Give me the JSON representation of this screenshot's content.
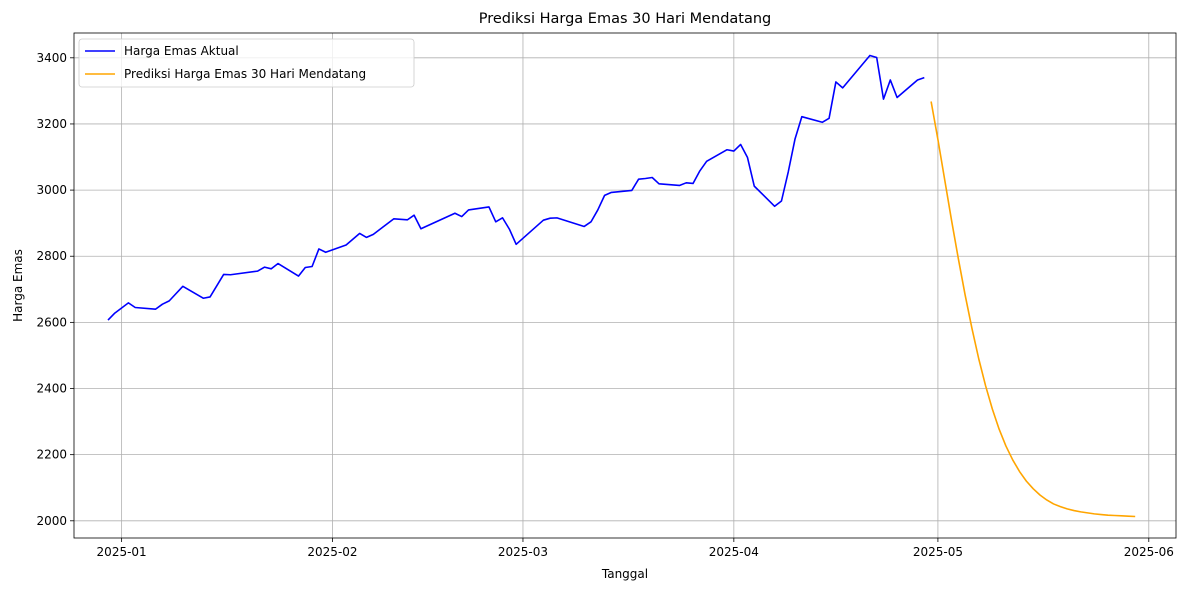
{
  "chart_data": {
    "type": "line",
    "title": "Prediksi Harga Emas 30 Hari Mendatang",
    "xlabel": "Tanggal",
    "ylabel": "Harga Emas",
    "x_axis_type": "date",
    "xlim": [
      "2024-12-25",
      "2025-06-05"
    ],
    "ylim": [
      1948,
      3475
    ],
    "grid": true,
    "legend_position": "top-left",
    "x_ticks": [
      "2025-01-01",
      "2025-02-01",
      "2025-03-01",
      "2025-04-01",
      "2025-05-01",
      "2025-06-01"
    ],
    "x_tick_labels": [
      "2025-01",
      "2025-02",
      "2025-03",
      "2025-04",
      "2025-05",
      "2025-06"
    ],
    "y_ticks": [
      2000,
      2200,
      2400,
      2600,
      2800,
      3000,
      3200,
      3400
    ],
    "y_tick_labels": [
      "2000",
      "2200",
      "2400",
      "2600",
      "2800",
      "3000",
      "3200",
      "3400"
    ],
    "series": [
      {
        "name": "Harga Emas Aktual",
        "color": "#0000ff",
        "x": [
          "2024-12-30",
          "2024-12-31",
          "2025-01-02",
          "2025-01-03",
          "2025-01-06",
          "2025-01-07",
          "2025-01-08",
          "2025-01-10",
          "2025-01-13",
          "2025-01-14",
          "2025-01-16",
          "2025-01-17",
          "2025-01-21",
          "2025-01-22",
          "2025-01-23",
          "2025-01-24",
          "2025-01-27",
          "2025-01-28",
          "2025-01-29",
          "2025-01-30",
          "2025-01-31",
          "2025-02-03",
          "2025-02-05",
          "2025-02-06",
          "2025-02-07",
          "2025-02-10",
          "2025-02-12",
          "2025-02-13",
          "2025-02-14",
          "2025-02-19",
          "2025-02-20",
          "2025-02-21",
          "2025-02-24",
          "2025-02-25",
          "2025-02-26",
          "2025-02-27",
          "2025-02-28",
          "2025-03-04",
          "2025-03-05",
          "2025-03-06",
          "2025-03-10",
          "2025-03-11",
          "2025-03-12",
          "2025-03-13",
          "2025-03-14",
          "2025-03-17",
          "2025-03-18",
          "2025-03-19",
          "2025-03-20",
          "2025-03-21",
          "2025-03-24",
          "2025-03-25",
          "2025-03-26",
          "2025-03-27",
          "2025-03-28",
          "2025-03-31",
          "2025-04-01",
          "2025-04-02",
          "2025-04-03",
          "2025-04-04",
          "2025-04-07",
          "2025-04-08",
          "2025-04-09",
          "2025-04-10",
          "2025-04-11",
          "2025-04-14",
          "2025-04-15",
          "2025-04-16",
          "2025-04-17",
          "2025-04-21",
          "2025-04-22",
          "2025-04-23",
          "2025-04-24",
          "2025-04-25",
          "2025-04-28",
          "2025-04-29"
        ],
        "values": [
          2607,
          2628,
          2659,
          2645,
          2640,
          2655,
          2665,
          2709,
          2673,
          2677,
          2745,
          2744,
          2755,
          2767,
          2762,
          2778,
          2740,
          2766,
          2769,
          2822,
          2812,
          2834,
          2869,
          2857,
          2866,
          2913,
          2910,
          2924,
          2883,
          2930,
          2920,
          2940,
          2949,
          2904,
          2916,
          2882,
          2836,
          2909,
          2915,
          2916,
          2890,
          2904,
          2940,
          2984,
          2993,
          2999,
          3033,
          3035,
          3038,
          3019,
          3014,
          3022,
          3020,
          3058,
          3087,
          3122,
          3118,
          3138,
          3099,
          3012,
          2951,
          2967,
          3055,
          3155,
          3222,
          3205,
          3217,
          3327,
          3309,
          3407,
          3401,
          3275,
          3333,
          3280,
          3333,
          3340
        ]
      },
      {
        "name": "Prediksi Harga Emas 30 Hari Mendatang",
        "color": "#ffa500",
        "x": [
          "2025-04-30",
          "2025-05-01",
          "2025-05-02",
          "2025-05-03",
          "2025-05-04",
          "2025-05-05",
          "2025-05-06",
          "2025-05-07",
          "2025-05-08",
          "2025-05-09",
          "2025-05-10",
          "2025-05-11",
          "2025-05-12",
          "2025-05-13",
          "2025-05-14",
          "2025-05-15",
          "2025-05-16",
          "2025-05-17",
          "2025-05-18",
          "2025-05-19",
          "2025-05-20",
          "2025-05-21",
          "2025-05-22",
          "2025-05-23",
          "2025-05-24",
          "2025-05-25",
          "2025-05-26",
          "2025-05-27",
          "2025-05-28",
          "2025-05-29",
          "2025-05-30"
        ],
        "values": [
          3268,
          3153,
          3031,
          2909,
          2793,
          2683,
          2582,
          2490,
          2409,
          2338,
          2277,
          2226,
          2184,
          2149,
          2120,
          2097,
          2078,
          2063,
          2051,
          2043,
          2036,
          2031,
          2027,
          2024,
          2021,
          2019,
          2017,
          2016,
          2015,
          2014,
          2013
        ]
      }
    ]
  }
}
